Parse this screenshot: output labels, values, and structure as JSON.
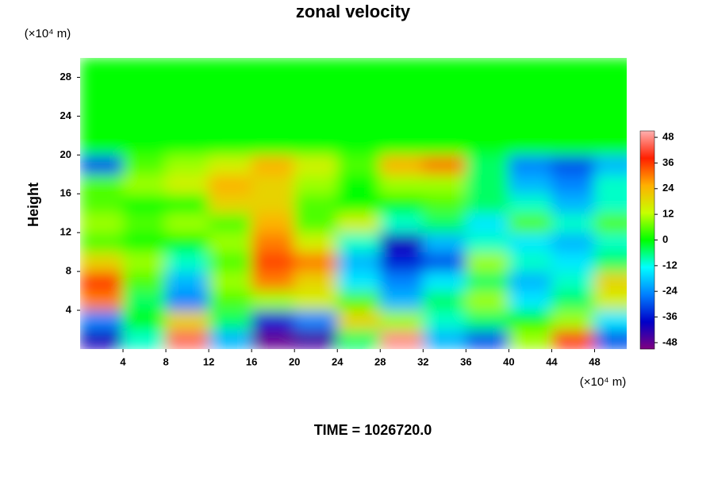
{
  "chart_data": {
    "type": "heatmap",
    "title": "zonal velocity",
    "y_label": "Height",
    "x_unit": "(×10⁴ m)",
    "y_unit": "(×10⁴ m)",
    "footer": "TIME = 1026720.0",
    "x": [
      2,
      6,
      10,
      14,
      18,
      22,
      26,
      30,
      34,
      38,
      42,
      46,
      50
    ],
    "y": [
      1,
      3,
      5,
      7,
      9,
      11,
      13,
      15,
      17,
      19,
      21,
      23,
      25,
      27,
      29
    ],
    "z": [
      [
        -40,
        -10,
        45,
        -20,
        -48,
        -45,
        -5,
        48,
        -20,
        -30,
        10,
        40,
        -30
      ],
      [
        -25,
        0,
        20,
        -5,
        -35,
        -25,
        20,
        10,
        -10,
        -5,
        0,
        10,
        -15
      ],
      [
        30,
        -5,
        -25,
        5,
        10,
        15,
        5,
        -20,
        -5,
        10,
        -15,
        -5,
        15
      ],
      [
        36,
        5,
        -20,
        10,
        30,
        20,
        -15,
        -25,
        -15,
        -5,
        -20,
        -10,
        20
      ],
      [
        20,
        10,
        -10,
        5,
        35,
        30,
        -20,
        -35,
        -30,
        10,
        -10,
        -15,
        -5
      ],
      [
        5,
        0,
        0,
        10,
        30,
        15,
        -10,
        -40,
        -20,
        -10,
        -15,
        -20,
        -10
      ],
      [
        10,
        5,
        10,
        5,
        25,
        5,
        15,
        -10,
        -5,
        -15,
        5,
        -10,
        5
      ],
      [
        5,
        0,
        0,
        20,
        20,
        5,
        0,
        0,
        5,
        -5,
        -10,
        -20,
        -10
      ],
      [
        5,
        10,
        15,
        25,
        20,
        10,
        0,
        10,
        10,
        -5,
        -20,
        -25,
        -10
      ],
      [
        -30,
        5,
        10,
        15,
        25,
        15,
        5,
        25,
        30,
        -5,
        -25,
        -30,
        -20
      ],
      [
        0,
        0,
        0,
        0,
        0,
        0,
        0,
        0,
        0,
        0,
        0,
        0,
        0
      ],
      [
        0,
        0,
        0,
        0,
        0,
        0,
        0,
        0,
        0,
        0,
        0,
        0,
        0
      ],
      [
        0,
        0,
        0,
        0,
        0,
        0,
        0,
        0,
        0,
        0,
        0,
        0,
        0
      ],
      [
        0,
        0,
        0,
        0,
        0,
        0,
        0,
        0,
        0,
        0,
        0,
        0,
        0
      ],
      [
        0,
        0,
        0,
        0,
        0,
        0,
        0,
        0,
        0,
        0,
        0,
        0,
        0
      ]
    ],
    "xlim": [
      0,
      51
    ],
    "ylim": [
      0,
      30
    ],
    "xticks": [
      4,
      8,
      12,
      16,
      20,
      24,
      28,
      32,
      36,
      40,
      44,
      48
    ],
    "yticks": [
      4,
      8,
      12,
      16,
      20,
      24,
      28
    ],
    "clim": [
      -51,
      51
    ],
    "cticks": [
      -48,
      -36,
      -24,
      -12,
      0,
      12,
      24,
      36,
      48
    ],
    "colormap": [
      "#800080",
      "#0000c8",
      "#0080ff",
      "#00ffff",
      "#00ff00",
      "#c8ff00",
      "#ffb000",
      "#ff2000",
      "#ffb0b0"
    ]
  }
}
